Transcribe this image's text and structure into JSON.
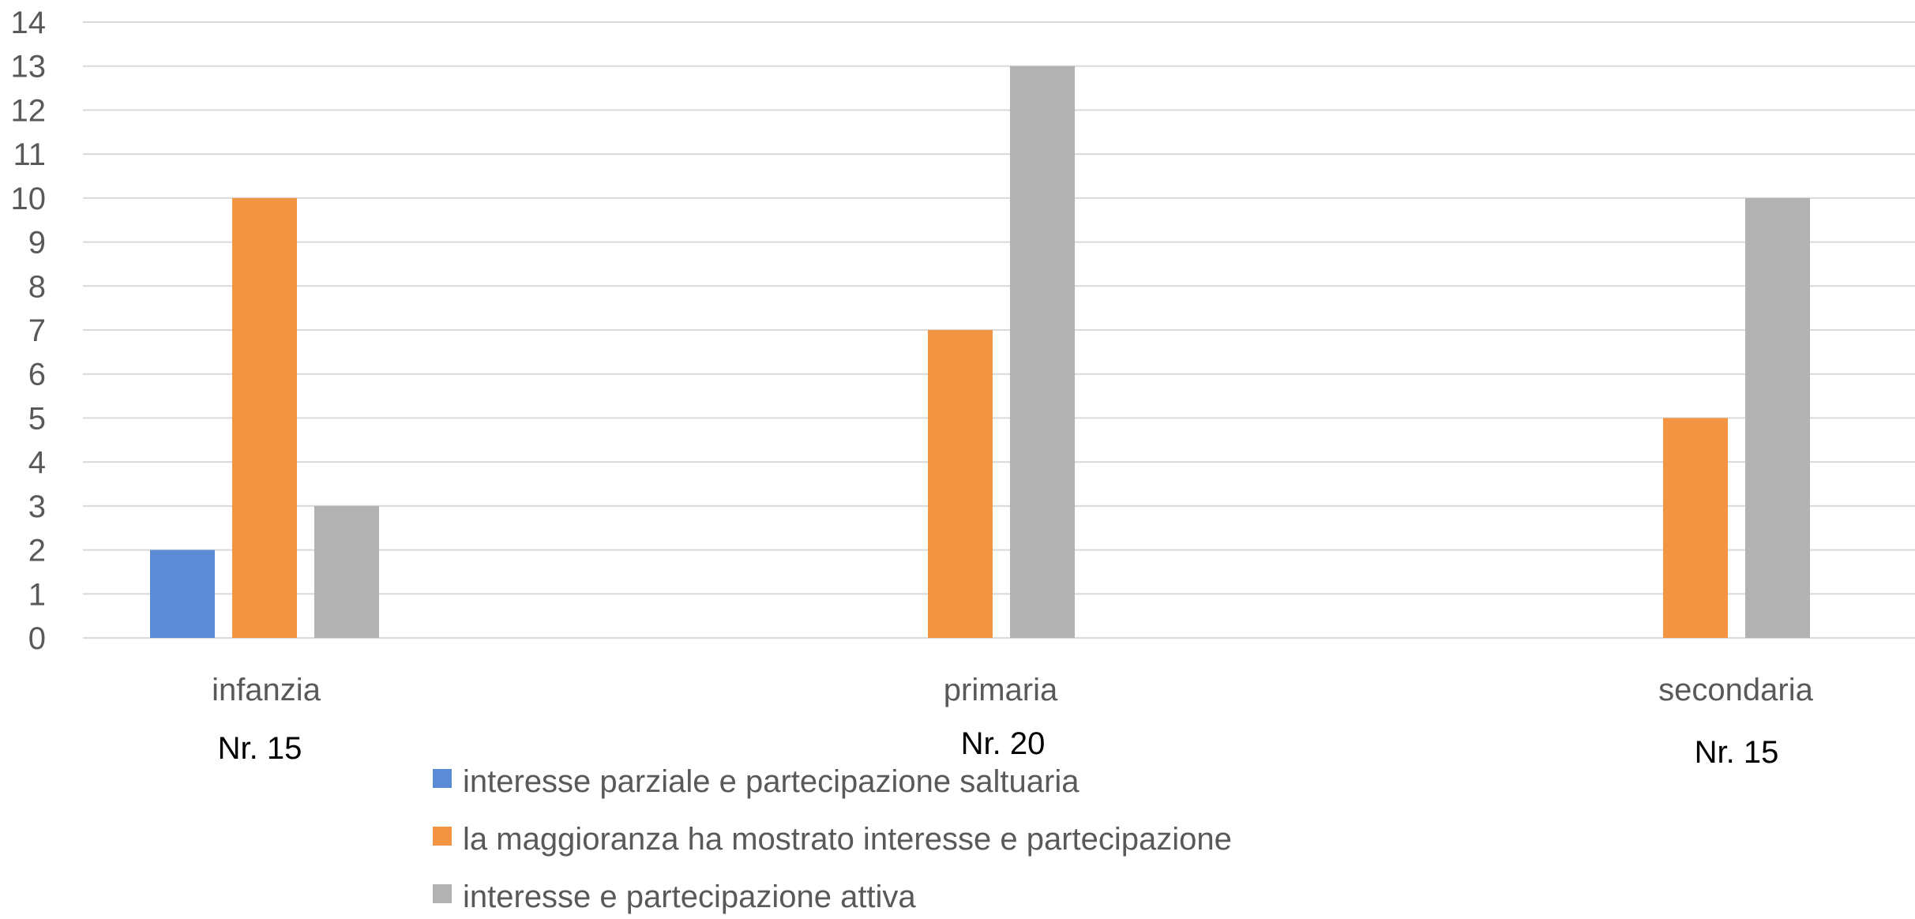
{
  "chart_data": {
    "type": "bar",
    "title": "",
    "xlabel": "",
    "ylabel": "",
    "ylim": [
      0,
      14
    ],
    "y_ticks": [
      0,
      1,
      2,
      3,
      4,
      5,
      6,
      7,
      8,
      9,
      10,
      11,
      12,
      13,
      14
    ],
    "grid": true,
    "legend_position": "bottom",
    "categories": [
      "infanzia",
      "primaria",
      "secondaria"
    ],
    "category_counts": [
      "Nr. 15",
      "Nr. 20",
      "Nr. 15"
    ],
    "series": [
      {
        "name": "interesse parziale e partecipazione saltuaria",
        "color": "#5b8bd4",
        "values": [
          2,
          null,
          null
        ]
      },
      {
        "name": "la maggioranza ha mostrato interesse e partecipazione",
        "color": "#f39443",
        "values": [
          10,
          7,
          5
        ]
      },
      {
        "name": "interesse e partecipazione attiva",
        "color": "#b2b2b2",
        "values": [
          3,
          13,
          10
        ]
      }
    ]
  }
}
